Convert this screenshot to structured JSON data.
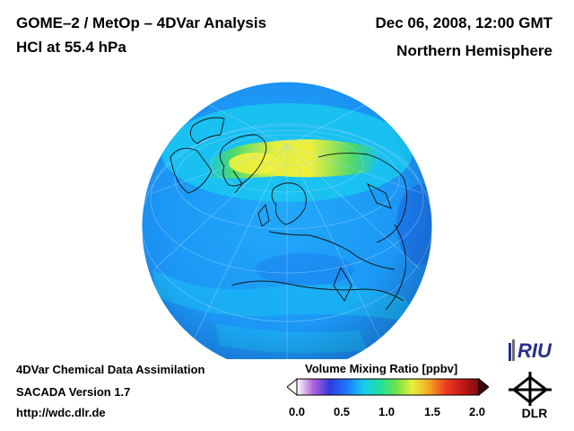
{
  "header": {
    "title": "GOME–2 / MetOp – 4DVar Analysis",
    "species": "HCl at 55.4 hPa",
    "datetime": "Dec 06, 2008, 12:00 GMT",
    "region": "Northern Hemisphere"
  },
  "footer": {
    "line1": "4DVar Chemical Data Assimilation",
    "line2": "SACADA Version 1.7",
    "line3": "http://wdc.dlr.de"
  },
  "colorbar": {
    "title": "Volume Mixing Ratio [ppbv]",
    "ticks": [
      "0.0",
      "0.5",
      "1.0",
      "1.5",
      "2.0"
    ],
    "min": 0.0,
    "max": 2.0,
    "colors": [
      "#ffffff",
      "#b060d8",
      "#2f3bdc",
      "#1e78ff",
      "#19c8f0",
      "#20e0a0",
      "#6ee04a",
      "#e6f03a",
      "#f5a623",
      "#ee3a20",
      "#c41818",
      "#7a0e0e"
    ]
  },
  "map": {
    "projection": "orthographic",
    "center": "North Pole",
    "background_level": 0.6,
    "high_band_level": 1.15,
    "palette": {
      "deep_blue": "#1e6cf0",
      "mid_blue": "#1e9cf8",
      "cyan": "#19c4ee",
      "green": "#4ad86e",
      "lime": "#c8ec4a",
      "yellow": "#f0f03a"
    }
  },
  "logos": {
    "riu": "RIU",
    "dlr": "DLR"
  }
}
